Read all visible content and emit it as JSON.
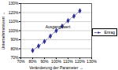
{
  "chart_data": {
    "type": "line",
    "x_label": "Veränderung der Parameter",
    "y_label": "Unternehmenswert",
    "x": [
      80,
      85,
      90,
      95,
      100,
      105,
      110,
      115,
      120
    ],
    "series": [
      {
        "name": "Ertrag",
        "color": "#333399",
        "marker": "diamond",
        "line_style": "dashed",
        "values": [
          78,
          83,
          88,
          94,
          100,
          105,
          111,
          116,
          122
        ]
      }
    ],
    "xlim": [
      70,
      130
    ],
    "xticks": [
      {
        "value": 70,
        "label": "70%"
      },
      {
        "value": 80,
        "label": "80%"
      },
      {
        "value": 90,
        "label": "90%"
      },
      {
        "value": 100,
        "label": "100%"
      },
      {
        "value": 110,
        "label": "110%"
      },
      {
        "value": 120,
        "label": "120%"
      },
      {
        "value": 130,
        "label": "130%"
      }
    ],
    "ylim": [
      70,
      130
    ],
    "yticks": [
      {
        "value": 70,
        "label": "70%"
      },
      {
        "value": 80,
        "label": "80%"
      },
      {
        "value": 90,
        "label": "90%"
      },
      {
        "value": 100,
        "label": "100%"
      },
      {
        "value": 110,
        "label": "110%"
      },
      {
        "value": 120,
        "label": "120%"
      },
      {
        "value": 130,
        "label": "130%"
      }
    ],
    "grid": true,
    "legend": "right",
    "annotations": [
      {
        "text": "Ausgangswert",
        "x": 100,
        "y": 100
      }
    ]
  }
}
